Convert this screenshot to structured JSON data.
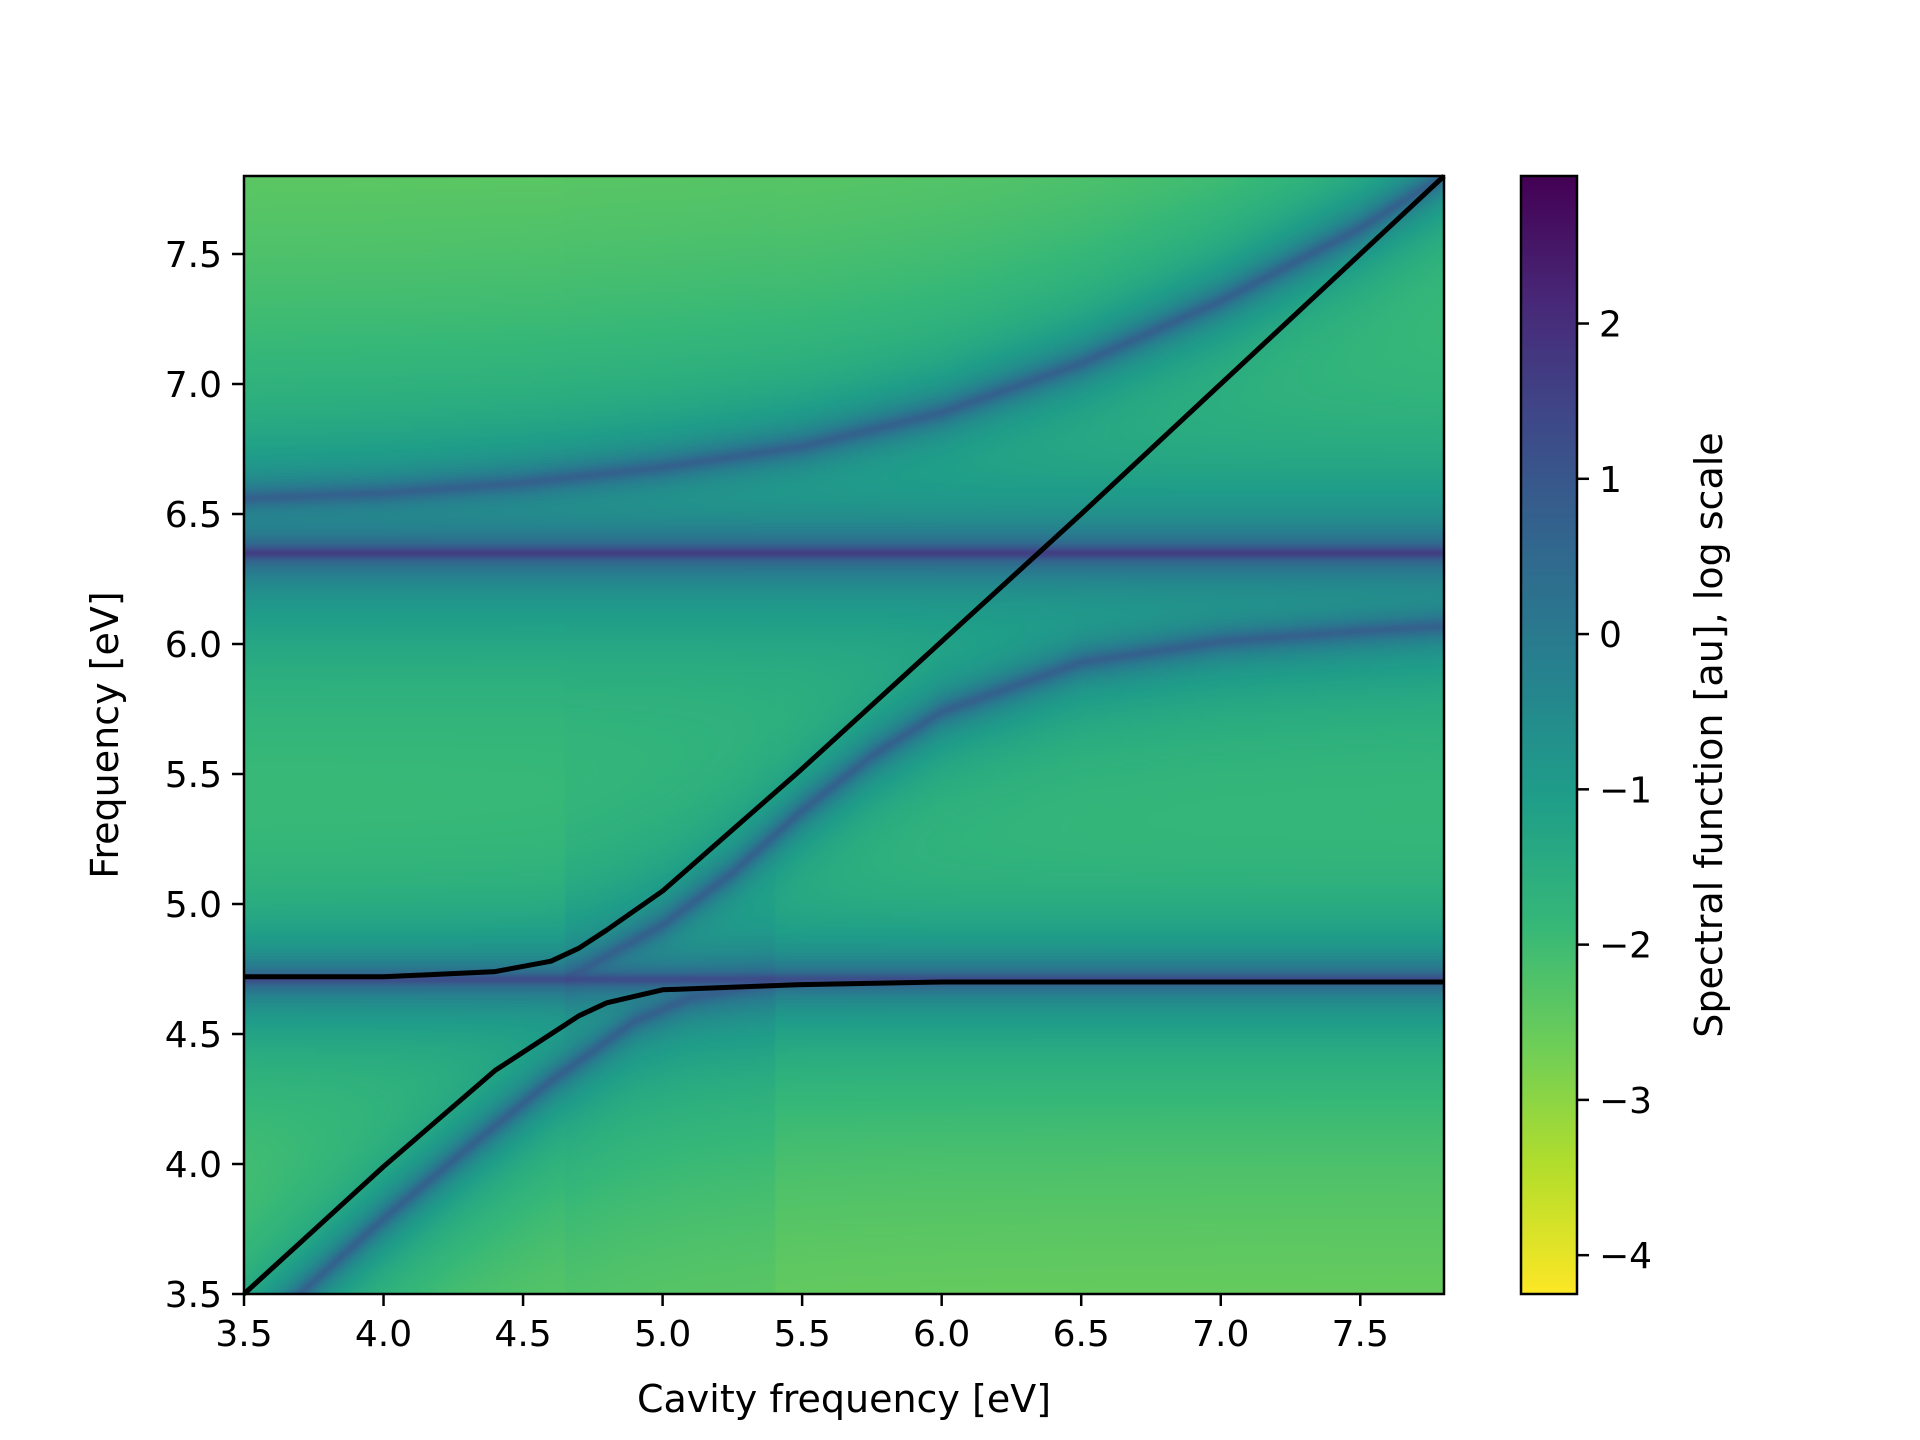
{
  "chart_data": {
    "type": "heatmap",
    "title": "",
    "xlabel": "Cavity frequency [eV]",
    "ylabel": "Frequency [eV]",
    "xlim": [
      3.5,
      7.8
    ],
    "ylim": [
      3.5,
      7.8
    ],
    "x_ticks": [
      "3.5",
      "4.0",
      "4.5",
      "5.0",
      "5.5",
      "6.0",
      "6.5",
      "7.0",
      "7.5"
    ],
    "x_tick_values": [
      3.5,
      4.0,
      4.5,
      5.0,
      5.5,
      6.0,
      6.5,
      7.0,
      7.5
    ],
    "y_ticks": [
      "3.5",
      "4.0",
      "4.5",
      "5.0",
      "5.5",
      "6.0",
      "6.5",
      "7.0",
      "7.5"
    ],
    "y_tick_values": [
      3.5,
      4.0,
      4.5,
      5.0,
      5.5,
      6.0,
      6.5,
      7.0,
      7.5
    ],
    "colormap": "viridis_r",
    "colorbar": {
      "label": "Spectral function [au], log scale",
      "range": [
        -4.25,
        2.95
      ],
      "ticks": [
        "−4",
        "−3",
        "−2",
        "−1",
        "0",
        "1",
        "2"
      ],
      "tick_values": [
        -4,
        -3,
        -2,
        -1,
        0,
        1,
        2
      ]
    },
    "flat_bands_eV": [
      4.71,
      6.35
    ],
    "overlay_lines": [
      {
        "color": "#000000",
        "x": [
          3.5,
          4.0,
          4.4,
          4.6,
          4.7,
          4.8,
          5.0,
          5.5,
          6.0,
          6.5,
          7.0,
          7.5,
          7.8
        ],
        "y": [
          3.5,
          3.99,
          4.36,
          4.5,
          4.57,
          4.62,
          4.67,
          4.69,
          4.7,
          4.7,
          4.7,
          4.7,
          4.7
        ]
      },
      {
        "color": "#000000",
        "x": [
          3.5,
          4.0,
          4.4,
          4.6,
          4.7,
          4.8,
          5.0,
          5.5,
          6.0,
          6.5,
          7.0,
          7.5,
          7.8
        ],
        "y": [
          4.72,
          4.72,
          4.74,
          4.78,
          4.83,
          4.9,
          5.05,
          5.52,
          6.01,
          6.5,
          7.0,
          7.5,
          7.8
        ]
      }
    ],
    "bright_branches": [
      {
        "x": [
          3.5,
          4.0,
          4.5,
          5.0,
          5.5,
          6.0,
          6.5,
          7.0,
          7.5,
          7.8
        ],
        "y": [
          6.56,
          6.58,
          6.62,
          6.68,
          6.76,
          6.89,
          7.08,
          7.32,
          7.6,
          7.8
        ]
      },
      {
        "x": [
          4.7,
          5.0,
          5.25,
          5.5,
          5.75,
          6.0,
          6.5,
          7.0,
          7.5,
          7.8
        ],
        "y": [
          4.74,
          4.92,
          5.12,
          5.36,
          5.57,
          5.74,
          5.93,
          6.01,
          6.05,
          6.07
        ]
      },
      {
        "x": [
          3.7,
          4.0,
          4.3,
          4.6,
          4.9,
          5.1,
          5.3
        ],
        "y": [
          3.5,
          3.79,
          4.06,
          4.32,
          4.55,
          4.64,
          4.68
        ]
      }
    ]
  }
}
